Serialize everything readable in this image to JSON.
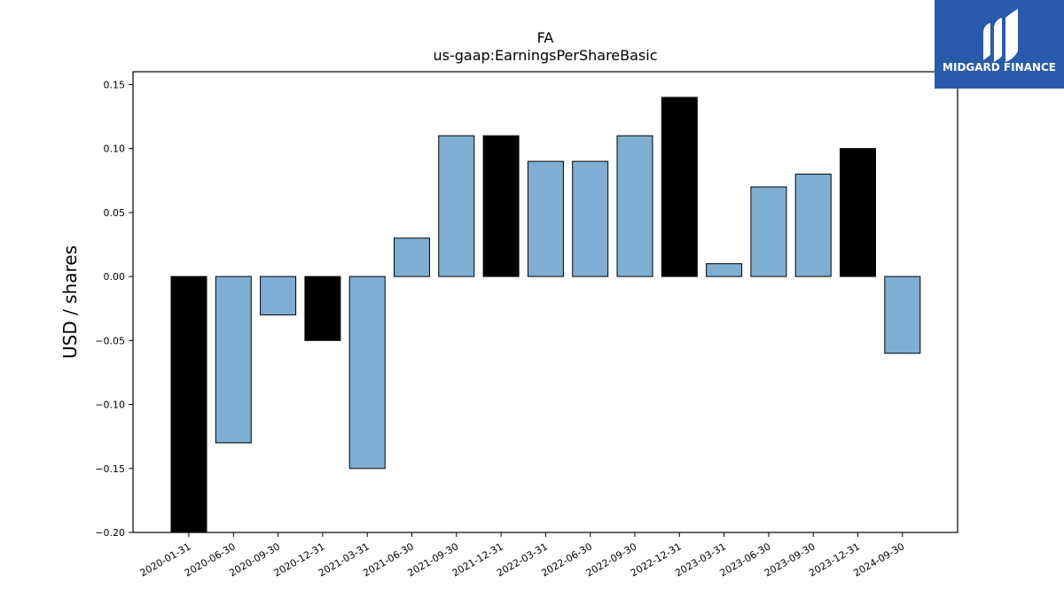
{
  "logo": {
    "text": "MIDGARD FINANCE",
    "background": "#2a5aab"
  },
  "chart_data": {
    "type": "bar",
    "title": "FA",
    "subtitle": "us-gaap:EarningsPerShareBasic",
    "xlabel": "",
    "ylabel": "USD / shares",
    "ylim": [
      -0.2,
      0.16
    ],
    "yticks": [
      0.15,
      0.1,
      0.05,
      0.0,
      -0.05,
      -0.1,
      -0.15,
      -0.2
    ],
    "ytick_labels": [
      "0.15",
      "0.10",
      "0.05",
      "0.00",
      "−0.05",
      "−0.10",
      "−0.15",
      "−0.20"
    ],
    "grid": false,
    "categories": [
      "2020-01-31",
      "2020-06-30",
      "2020-09-30",
      "2020-12-31",
      "2021-03-31",
      "2021-06-30",
      "2021-09-30",
      "2021-12-31",
      "2022-03-31",
      "2022-06-30",
      "2022-09-30",
      "2022-12-31",
      "2023-03-31",
      "2023-06-30",
      "2023-09-30",
      "2023-12-31",
      "2024-09-30"
    ],
    "values": [
      -0.2,
      -0.13,
      -0.03,
      -0.05,
      -0.15,
      0.03,
      0.11,
      0.11,
      0.09,
      0.09,
      0.11,
      0.14,
      0.01,
      0.07,
      0.08,
      0.1,
      -0.06
    ],
    "colors": [
      "#000000",
      "#7eafd2",
      "#7eafd2",
      "#000000",
      "#7eafd2",
      "#7eafd2",
      "#7eafd2",
      "#000000",
      "#7eafd2",
      "#7eafd2",
      "#7eafd2",
      "#000000",
      "#7eafd2",
      "#7eafd2",
      "#7eafd2",
      "#000000",
      "#7eafd2"
    ]
  }
}
